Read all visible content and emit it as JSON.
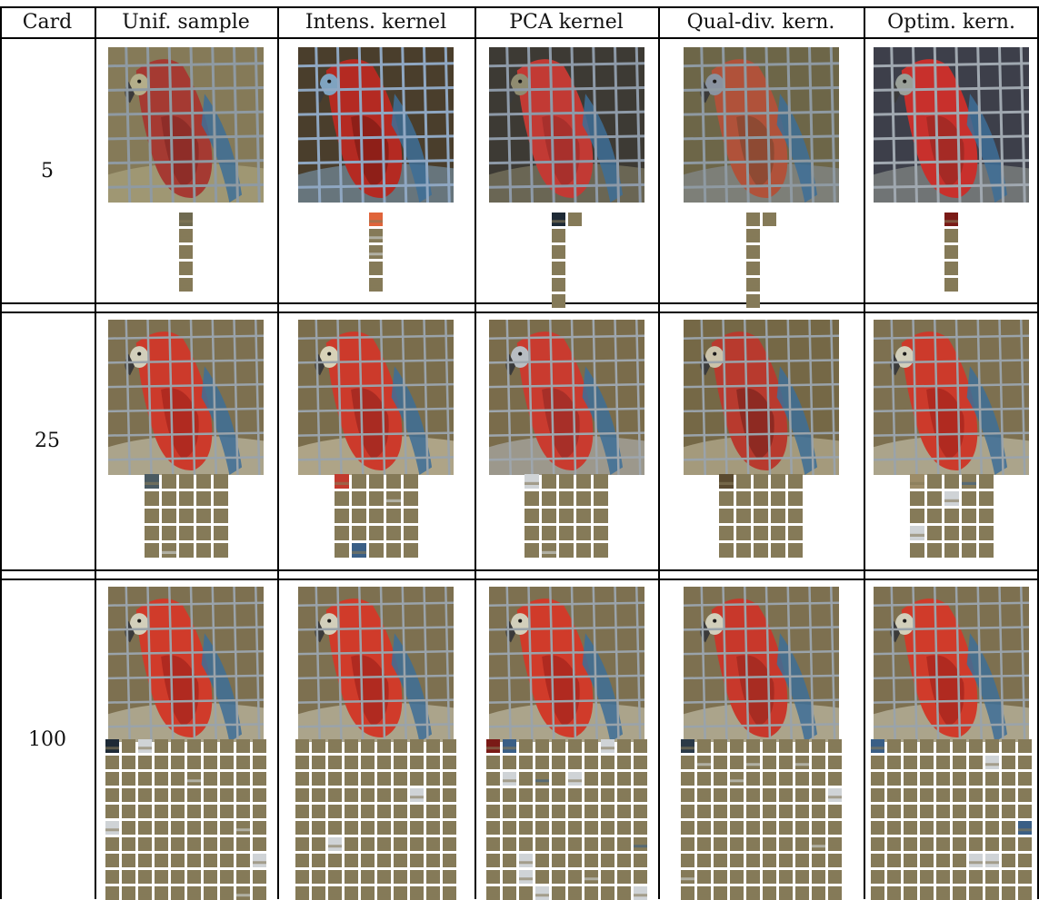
{
  "table": {
    "headers": [
      "Card",
      "Unif. sample",
      "Intens. kernel",
      "PCA kernel",
      "Qual-div. kern.",
      "Optim. kern."
    ],
    "rows": [
      {
        "card": "5",
        "swatch_counts": [
          5,
          5,
          7,
          7,
          5
        ]
      },
      {
        "card": "25",
        "swatch_counts": [
          25,
          25,
          25,
          25,
          25
        ]
      },
      {
        "card": "100",
        "swatch_counts": [
          100,
          100,
          100,
          100,
          100
        ]
      }
    ]
  },
  "images": {
    "subject": "parrot-behind-wire-fence",
    "row_palettes": [
      [
        {
          "bg": "#857a58",
          "bird": "#a53a32",
          "bird2": "#8e2d28",
          "accent": "#b4ae8a",
          "wire": "#8f9aa2"
        },
        {
          "bg": "#4a3e2c",
          "bird": "#b42a22",
          "bird2": "#8e1f18",
          "accent": "#7fa3c0",
          "wire": "#8fa7c2"
        },
        {
          "bg": "#3d3a34",
          "bird": "#c23a34",
          "bird2": "#a8302c",
          "accent": "#8f8b70",
          "wire": "#8e9aa8"
        },
        {
          "bg": "#6d6648",
          "bird": "#b0523a",
          "bird2": "#8e4a33",
          "accent": "#8a93a0",
          "wire": "#8f9aa2"
        },
        {
          "bg": "#3d3f4a",
          "bird": "#c8302c",
          "bird2": "#a52a25",
          "accent": "#9aa099",
          "wire": "#a0a8b0"
        }
      ],
      [
        {
          "bg": "#7d7050",
          "bird": "#cc3a2b",
          "bird2": "#b02a20",
          "accent": "#d2cfbb",
          "wire": "#9aa3aa"
        },
        {
          "bg": "#7a6d4c",
          "bird": "#cc3a2b",
          "bird2": "#a92b22",
          "accent": "#d8d2b8",
          "wire": "#9aa3aa"
        },
        {
          "bg": "#7a6c4b",
          "bird": "#c93b2f",
          "bird2": "#a72f28",
          "accent": "#b8bdc2",
          "wire": "#9ea6ad"
        },
        {
          "bg": "#756846",
          "bird": "#b83a2e",
          "bird2": "#8e2a22",
          "accent": "#cbc3aa",
          "wire": "#9aa3aa"
        },
        {
          "bg": "#7d7050",
          "bird": "#cc3a2b",
          "bird2": "#b02a20",
          "accent": "#d2cfbb",
          "wire": "#9aa3aa"
        }
      ],
      [
        {
          "bg": "#7d7050",
          "bird": "#d03b2a",
          "bird2": "#b02a20",
          "accent": "#d2cfbb",
          "wire": "#9aa3aa"
        },
        {
          "bg": "#7d7050",
          "bird": "#d03b2a",
          "bird2": "#b02a20",
          "accent": "#d2cfbb",
          "wire": "#9aa3aa"
        },
        {
          "bg": "#7d7050",
          "bird": "#d03b2a",
          "bird2": "#b02a20",
          "accent": "#d2cfbb",
          "wire": "#9aa3aa"
        },
        {
          "bg": "#7d7050",
          "bird": "#c8382b",
          "bird2": "#a82c22",
          "accent": "#d2cfbb",
          "wire": "#9aa3aa"
        },
        {
          "bg": "#7d7050",
          "bird": "#d03b2a",
          "bird2": "#b02a20",
          "accent": "#d2cfbb",
          "wire": "#9aa3aa"
        }
      ]
    ],
    "swatch_colors": [
      "#857a58",
      "#a32a24",
      "#4a5a62",
      "#7a1a16",
      "#8b8e93",
      "#c23a2e",
      "#2b3a48",
      "#6f6a50",
      "#cfd3d6",
      "#3a5f86",
      "#e0643a",
      "#5a4a30",
      "#b0b4b8",
      "#1e2a36",
      "#9c8c68",
      "#d54836"
    ]
  }
}
